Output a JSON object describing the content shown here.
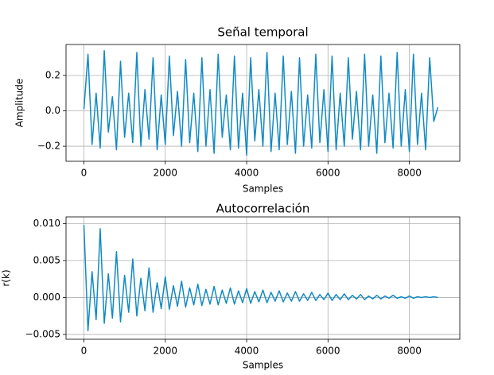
{
  "chart_data": [
    {
      "type": "line",
      "title": "Señal temporal",
      "xlabel": "Samples",
      "ylabel": "Amplitude",
      "grid": true,
      "color": "#118ac4",
      "xlim": [
        -440,
        9240
      ],
      "ylim": [
        -0.285,
        0.375
      ],
      "xticks": [
        0,
        2000,
        4000,
        6000,
        8000
      ],
      "yticks": [
        {
          "value": -0.2,
          "label": "−0.2"
        },
        {
          "value": 0,
          "label": "0.0"
        },
        0.2
      ],
      "x": [
        0,
        100,
        200,
        300,
        400,
        500,
        600,
        700,
        800,
        900,
        1000,
        1100,
        1200,
        1300,
        1400,
        1500,
        1600,
        1700,
        1800,
        1900,
        2000,
        2100,
        2200,
        2300,
        2400,
        2500,
        2600,
        2700,
        2800,
        2900,
        3000,
        3100,
        3200,
        3300,
        3400,
        3500,
        3600,
        3700,
        3800,
        3900,
        4000,
        4100,
        4200,
        4300,
        4400,
        4500,
        4600,
        4700,
        4800,
        4900,
        5000,
        5100,
        5200,
        5300,
        5400,
        5500,
        5600,
        5700,
        5800,
        5900,
        6000,
        6100,
        6200,
        6300,
        6400,
        6500,
        6600,
        6700,
        6800,
        6900,
        7000,
        7100,
        7200,
        7300,
        7400,
        7500,
        7600,
        7700,
        7800,
        7900,
        8000,
        8100,
        8200,
        8300,
        8400,
        8500,
        8600,
        8700
      ],
      "values": [
        0.01,
        0.32,
        -0.19,
        0.1,
        -0.21,
        0.34,
        -0.12,
        0.08,
        -0.22,
        0.28,
        -0.15,
        0.1,
        -0.18,
        0.33,
        -0.2,
        0.12,
        -0.16,
        0.3,
        -0.22,
        0.09,
        -0.19,
        0.31,
        -0.14,
        0.11,
        -0.2,
        0.29,
        -0.18,
        0.1,
        -0.23,
        0.3,
        -0.2,
        0.12,
        -0.24,
        0.32,
        -0.15,
        0.09,
        -0.22,
        0.31,
        -0.21,
        0.1,
        -0.25,
        0.3,
        -0.17,
        0.12,
        -0.2,
        0.33,
        -0.23,
        0.1,
        -0.22,
        0.31,
        -0.19,
        0.11,
        -0.24,
        0.3,
        -0.2,
        0.09,
        -0.21,
        0.32,
        -0.18,
        0.12,
        -0.23,
        0.31,
        -0.22,
        0.1,
        -0.2,
        0.3,
        -0.16,
        0.11,
        -0.22,
        0.32,
        -0.2,
        0.09,
        -0.24,
        0.31,
        -0.18,
        0.1,
        -0.21,
        0.33,
        -0.2,
        0.12,
        -0.23,
        0.32,
        -0.19,
        0.1,
        -0.22,
        0.3,
        -0.06,
        0.02
      ]
    },
    {
      "type": "line",
      "title": "Autocorrelación",
      "xlabel": "Samples",
      "ylabel": "r(k)",
      "grid": true,
      "color": "#118ac4",
      "xlim": [
        -440,
        9240
      ],
      "ylim": [
        -0.00565,
        0.0109
      ],
      "xticks": [
        0,
        2000,
        4000,
        6000,
        8000
      ],
      "yticks": [
        {
          "value": -0.005,
          "label": "−0.005"
        },
        {
          "value": 0,
          "label": "0.000"
        },
        0.005,
        {
          "value": 0.01,
          "label": "0.010"
        }
      ],
      "x": [
        0,
        100,
        200,
        300,
        400,
        500,
        600,
        700,
        800,
        900,
        1000,
        1100,
        1200,
        1300,
        1400,
        1500,
        1600,
        1700,
        1800,
        1900,
        2000,
        2100,
        2200,
        2300,
        2400,
        2500,
        2600,
        2700,
        2800,
        2900,
        3000,
        3100,
        3200,
        3300,
        3400,
        3500,
        3600,
        3700,
        3800,
        3900,
        4000,
        4100,
        4200,
        4300,
        4400,
        4500,
        4600,
        4700,
        4800,
        4900,
        5000,
        5100,
        5200,
        5300,
        5400,
        5500,
        5600,
        5700,
        5800,
        5900,
        6000,
        6100,
        6200,
        6300,
        6400,
        6500,
        6600,
        6700,
        6800,
        6900,
        7000,
        7100,
        7200,
        7300,
        7400,
        7500,
        7600,
        7700,
        7800,
        7900,
        8000,
        8100,
        8200,
        8300,
        8400,
        8500,
        8600,
        8700
      ],
      "values": [
        0.0098,
        -0.0045,
        0.0035,
        -0.003,
        0.0093,
        -0.0035,
        0.0032,
        -0.0028,
        0.0062,
        -0.0033,
        0.003,
        -0.002,
        0.0052,
        -0.0025,
        0.0026,
        -0.0018,
        0.004,
        -0.002,
        0.002,
        -0.0015,
        0.0028,
        -0.0016,
        0.0016,
        -0.0012,
        0.0022,
        -0.0013,
        0.0013,
        -0.001,
        0.0018,
        -0.0011,
        0.0011,
        -0.0009,
        0.0015,
        -0.001,
        0.001,
        -0.0008,
        0.0013,
        -0.0009,
        0.0009,
        -0.0007,
        0.0012,
        -0.0008,
        0.0008,
        -0.0006,
        0.001,
        -0.0007,
        0.0007,
        -0.0005,
        0.0009,
        -0.0006,
        0.0006,
        -0.0005,
        0.0008,
        -0.0005,
        0.0005,
        -0.0004,
        0.0007,
        -0.0004,
        0.0004,
        -0.0003,
        0.0006,
        -0.0004,
        0.0004,
        -0.0003,
        0.0005,
        -0.0003,
        0.0003,
        -0.0002,
        0.0004,
        -0.0003,
        0.0002,
        -0.0002,
        0.0003,
        -0.0002,
        0.0002,
        -0.0001,
        0.0003,
        -0.0001,
        0.0001,
        -0.0001,
        0.0002,
        -0.0001,
        0.0001,
        0,
        0.0001,
        0,
        0.0001,
        0
      ]
    }
  ]
}
